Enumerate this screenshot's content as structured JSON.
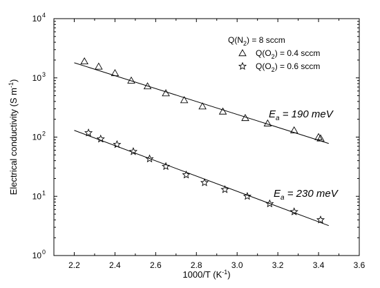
{
  "chart_data": {
    "type": "scatter",
    "title": "",
    "xlabel": {
      "main": "1000/T (K",
      "sup": "-1",
      "tail": ")"
    },
    "ylabel": {
      "main": "Electrical conductivity (S m",
      "sup": "-1",
      "tail": ")"
    },
    "xlim": [
      2.1,
      3.6
    ],
    "ylim": [
      1,
      10000
    ],
    "yscale": "log",
    "grid": false,
    "x_ticks": [
      "2.2",
      "2.4",
      "2.6",
      "2.8",
      "3.0",
      "3.2",
      "3.4",
      "3.6"
    ],
    "y_ticks": [
      {
        "value": 1,
        "base": "10",
        "exp": "0"
      },
      {
        "value": 10,
        "base": "10",
        "exp": "1"
      },
      {
        "value": 100,
        "base": "10",
        "exp": "2"
      },
      {
        "value": 1000,
        "base": "10",
        "exp": "3"
      },
      {
        "value": 10000,
        "base": "10",
        "exp": "4"
      }
    ],
    "legend_title": {
      "pre": "Q(N",
      "sub": "2",
      "post": ") = 8 sccm"
    },
    "series": [
      {
        "name": {
          "pre": "Q(O",
          "sub": "2",
          "post": ") = 0.4 sccm"
        },
        "marker": "triangle",
        "x": [
          2.25,
          2.32,
          2.4,
          2.48,
          2.56,
          2.65,
          2.74,
          2.83,
          2.93,
          3.04,
          3.15,
          3.28,
          3.4,
          3.41
        ],
        "y": [
          1900,
          1550,
          1200,
          900,
          720,
          550,
          420,
          330,
          270,
          210,
          170,
          130,
          100,
          95
        ],
        "fit": {
          "x": [
            2.2,
            3.45
          ],
          "y": [
            1800,
            78
          ]
        },
        "annotation": {
          "symbol": "E",
          "sub": "a",
          "text": " = 190 meV"
        }
      },
      {
        "name": {
          "pre": "Q(O",
          "sub": "2",
          "post": ") = 0.6 sccm"
        },
        "marker": "star",
        "x": [
          2.27,
          2.33,
          2.41,
          2.49,
          2.57,
          2.65,
          2.75,
          2.84,
          2.94,
          3.05,
          3.16,
          3.28,
          3.41
        ],
        "y": [
          118,
          93,
          75,
          57,
          43,
          32,
          23,
          17,
          13,
          10,
          7.5,
          5.5,
          4.0
        ],
        "fit": {
          "x": [
            2.2,
            3.45
          ],
          "y": [
            130,
            3.2
          ]
        },
        "annotation": {
          "symbol": "E",
          "sub": "a",
          "text": " = 230 meV"
        }
      }
    ],
    "legend_position": "top-right"
  }
}
